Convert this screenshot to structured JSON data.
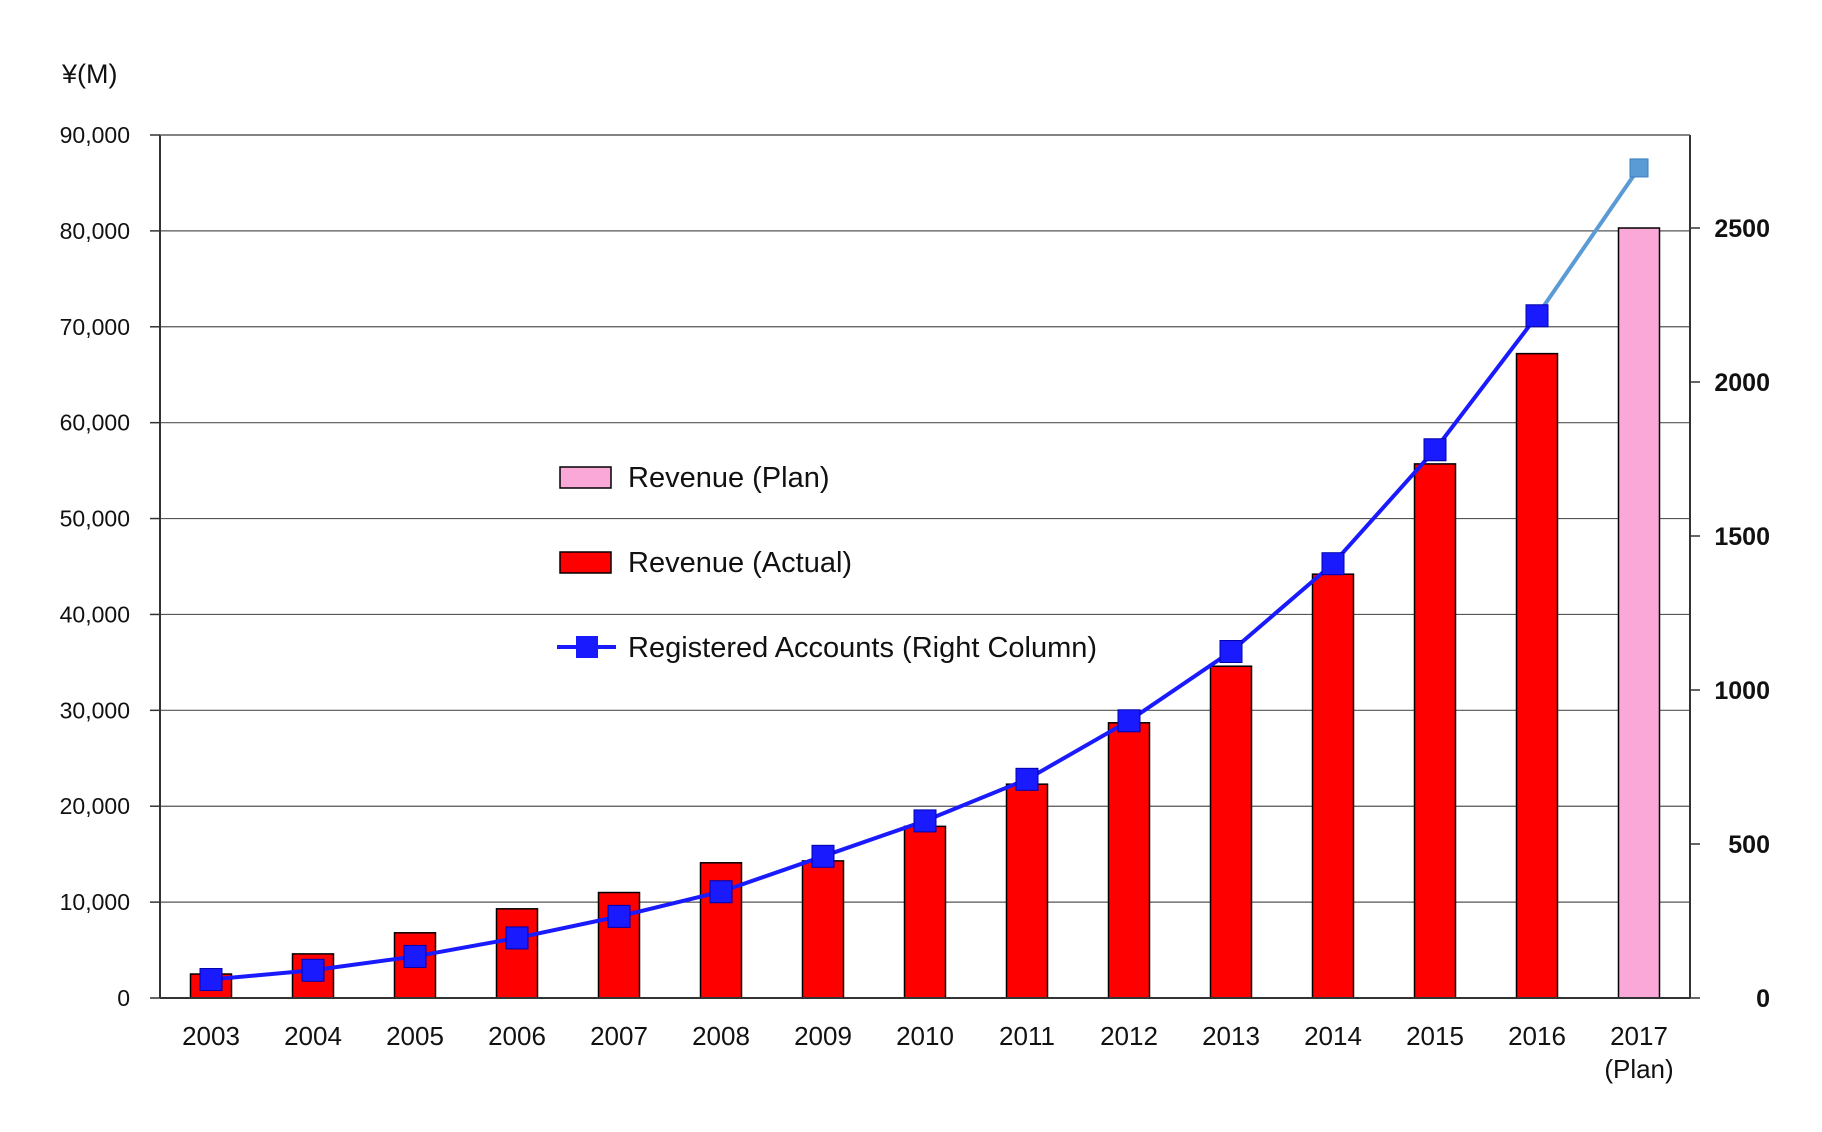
{
  "chart_data": {
    "type": "bar",
    "y_unit_label": "¥(M)",
    "categories": [
      [
        "2003"
      ],
      [
        "2004"
      ],
      [
        "2005"
      ],
      [
        "2006"
      ],
      [
        "2007"
      ],
      [
        "2008"
      ],
      [
        "2009"
      ],
      [
        "2010"
      ],
      [
        "2011"
      ],
      [
        "2012"
      ],
      [
        "2013"
      ],
      [
        "2014"
      ],
      [
        "2015"
      ],
      [
        "2016"
      ],
      [
        "2017",
        "(Plan)"
      ]
    ],
    "series": [
      {
        "name": "Revenue (Actual)",
        "kind": "bar",
        "axis": "left",
        "color": "#ff0000",
        "values": [
          2500,
          4600,
          6800,
          9300,
          11000,
          14100,
          14300,
          17900,
          22300,
          28700,
          34600,
          44200,
          55700,
          67200,
          null
        ]
      },
      {
        "name": "Revenue (Plan)",
        "kind": "bar",
        "axis": "left",
        "color": "#f9a8d8",
        "values": [
          null,
          null,
          null,
          null,
          null,
          null,
          null,
          null,
          null,
          null,
          null,
          null,
          null,
          null,
          80300
        ]
      },
      {
        "name": "Registered Accounts (Right Column)",
        "kind": "line",
        "axis": "right",
        "color": "#1a1aff",
        "plan_color": "#5b9bd5",
        "values": [
          60,
          90,
          135,
          195,
          265,
          345,
          460,
          575,
          710,
          900,
          1125,
          1410,
          1780,
          2215,
          2695
        ]
      }
    ],
    "y_left": {
      "range": [
        0,
        90000
      ],
      "ticks": [
        "0",
        "10,000",
        "20,000",
        "30,000",
        "40,000",
        "50,000",
        "60,000",
        "70,000",
        "80,000",
        "90,000"
      ]
    },
    "y_right": {
      "range": [
        0,
        2500
      ],
      "ticks": [
        "0",
        "500",
        "1000",
        "1500",
        "2000",
        "2500"
      ]
    },
    "grid": "horizontal",
    "legend_position": "center-left",
    "legend": [
      {
        "label": "Revenue (Plan)",
        "type": "bar",
        "color": "#f9a8d8"
      },
      {
        "label": "Revenue (Actual)",
        "type": "bar",
        "color": "#ff0000"
      },
      {
        "label": "Registered Accounts (Right Column)",
        "type": "line",
        "color": "#1a1aff"
      }
    ]
  }
}
